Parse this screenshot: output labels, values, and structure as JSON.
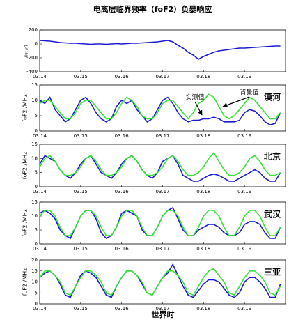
{
  "chart_data": [
    {
      "type": "line",
      "title": "电离层临界频率（foF2）负暴响应",
      "y_label": "Dst /nT",
      "x": [
        14,
        14.125,
        14.25,
        14.375,
        14.5,
        14.625,
        14.75,
        14.875,
        15,
        15.125,
        15.25,
        15.375,
        15.5,
        15.625,
        15.75,
        15.875,
        16,
        16.125,
        16.25,
        16.375,
        16.5,
        16.625,
        16.75,
        16.875,
        17,
        17.125,
        17.25,
        17.375,
        17.5,
        17.625,
        17.75,
        17.875,
        18,
        18.125,
        18.25,
        18.375,
        18.5,
        18.625,
        18.75,
        18.875,
        19,
        19.125,
        19.25,
        19.375,
        19.5,
        19.625,
        19.75,
        19.875
      ],
      "xlim": [
        14,
        20
      ],
      "xticks": [
        {
          "value": 14,
          "label": "03.14"
        },
        {
          "value": 15,
          "label": "03.15"
        },
        {
          "value": 16,
          "label": "03.16"
        },
        {
          "value": 17,
          "label": "03.17"
        },
        {
          "value": 18,
          "label": "03.18"
        },
        {
          "value": 19,
          "label": "03.19"
        }
      ],
      "ylim": [
        -400,
        200
      ],
      "yticks": [
        -400,
        -200,
        0,
        200
      ],
      "series": [
        {
          "color": "#1a1ad6",
          "values": [
            50,
            45,
            40,
            30,
            20,
            15,
            10,
            10,
            5,
            0,
            -5,
            0,
            0,
            -5,
            0,
            5,
            0,
            5,
            10,
            10,
            15,
            20,
            25,
            30,
            40,
            50,
            30,
            -20,
            -60,
            -120,
            -160,
            -220,
            -180,
            -150,
            -120,
            -100,
            -90,
            -80,
            -70,
            -60,
            -60,
            -55,
            -50,
            -45,
            -40,
            -35,
            -30,
            -30
          ]
        }
      ]
    },
    {
      "type": "line",
      "y_label": "foF2 /MHz",
      "station": "漠河",
      "annotations": [
        "实测值",
        "背景值"
      ],
      "x": [
        14,
        14.125,
        14.25,
        14.375,
        14.5,
        14.625,
        14.75,
        14.875,
        15,
        15.125,
        15.25,
        15.375,
        15.5,
        15.625,
        15.75,
        15.875,
        16,
        16.125,
        16.25,
        16.375,
        16.5,
        16.625,
        16.75,
        16.875,
        17,
        17.125,
        17.25,
        17.375,
        17.5,
        17.625,
        17.75,
        17.875,
        18,
        18.125,
        18.25,
        18.375,
        18.5,
        18.625,
        18.75,
        18.875,
        19,
        19.125,
        19.25,
        19.375,
        19.5,
        19.625,
        19.75,
        19.875
      ],
      "xlim": [
        14,
        20
      ],
      "xticks": [
        {
          "value": 14,
          "label": "03.14"
        },
        {
          "value": 15,
          "label": "03.15"
        },
        {
          "value": 16,
          "label": "03.16"
        },
        {
          "value": 17,
          "label": "03.17"
        },
        {
          "value": 18,
          "label": "03.18"
        },
        {
          "value": 19,
          "label": "03.19"
        }
      ],
      "ylim": [
        0,
        15
      ],
      "yticks": [
        0,
        5,
        10,
        15
      ],
      "series": [
        {
          "color": "#1a1ad6",
          "values": [
            10,
            9,
            11,
            7,
            5,
            3,
            4,
            7,
            10,
            11,
            9,
            6,
            4,
            3,
            4,
            8,
            10,
            9,
            10,
            7,
            5,
            3,
            4,
            7,
            10,
            11,
            9,
            6,
            4,
            3,
            3.5,
            3.5,
            4,
            4,
            4.5,
            4,
            3,
            3,
            3,
            3.5,
            6,
            7,
            6.5,
            5,
            3,
            2,
            2.5,
            6
          ]
        },
        {
          "color": "#33e633",
          "values": [
            9,
            10,
            10,
            8,
            6,
            4,
            4,
            6,
            9,
            10,
            10,
            8,
            6,
            4,
            4,
            6,
            9,
            11,
            10,
            8,
            5,
            4,
            4,
            6,
            9,
            10,
            10,
            8,
            6,
            4,
            6,
            9,
            10,
            12,
            11,
            8,
            5,
            4,
            5,
            7,
            9,
            11,
            10,
            8,
            6,
            4,
            4,
            6
          ]
        }
      ]
    },
    {
      "type": "line",
      "y_label": "foF2 /MHz",
      "station": "北京",
      "x": [
        14,
        14.125,
        14.25,
        14.375,
        14.5,
        14.625,
        14.75,
        14.875,
        15,
        15.125,
        15.25,
        15.375,
        15.5,
        15.625,
        15.75,
        15.875,
        16,
        16.125,
        16.25,
        16.375,
        16.5,
        16.625,
        16.75,
        16.875,
        17,
        17.125,
        17.25,
        17.375,
        17.5,
        17.625,
        17.75,
        17.875,
        18,
        18.125,
        18.25,
        18.375,
        18.5,
        18.625,
        18.75,
        18.875,
        19,
        19.125,
        19.25,
        19.375,
        19.5,
        19.625,
        19.75,
        19.875
      ],
      "xlim": [
        14,
        20
      ],
      "xticks": [
        {
          "value": 14,
          "label": "03.14"
        },
        {
          "value": 15,
          "label": "03.15"
        },
        {
          "value": 16,
          "label": "03.16"
        },
        {
          "value": 17,
          "label": "03.17"
        },
        {
          "value": 18,
          "label": "03.18"
        },
        {
          "value": 19,
          "label": "03.19"
        }
      ],
      "ylim": [
        0,
        15
      ],
      "yticks": [
        0,
        5,
        10,
        15
      ],
      "series": [
        {
          "color": "#1a1ad6",
          "values": [
            8,
            11,
            10,
            9,
            6,
            4,
            3,
            5,
            8,
            10,
            11,
            8,
            5,
            4,
            3,
            5,
            8,
            10,
            11,
            9,
            6,
            4,
            3,
            5,
            9,
            10,
            11,
            8,
            4,
            3,
            2,
            2,
            3,
            4,
            4.5,
            4,
            3,
            2,
            2,
            3,
            4,
            5,
            6,
            5,
            3,
            2,
            2,
            5
          ]
        },
        {
          "color": "#33e633",
          "values": [
            7,
            10,
            11,
            9,
            6,
            4,
            4,
            5,
            7,
            10,
            11,
            9,
            6,
            4,
            4,
            5,
            7,
            10,
            11,
            9,
            6,
            4,
            4,
            5,
            7,
            10,
            11,
            9,
            6,
            4,
            4,
            5,
            7,
            10,
            12,
            9,
            6,
            4,
            4,
            5,
            7,
            10,
            11,
            9,
            6,
            4,
            4,
            5
          ]
        }
      ]
    },
    {
      "type": "line",
      "y_label": "foF2 /MHz",
      "station": "武汉",
      "x": [
        14,
        14.125,
        14.25,
        14.375,
        14.5,
        14.625,
        14.75,
        14.875,
        15,
        15.125,
        15.25,
        15.375,
        15.5,
        15.625,
        15.75,
        15.875,
        16,
        16.125,
        16.25,
        16.375,
        16.5,
        16.625,
        16.75,
        16.875,
        17,
        17.125,
        17.25,
        17.375,
        17.5,
        17.625,
        17.75,
        17.875,
        18,
        18.125,
        18.25,
        18.375,
        18.5,
        18.625,
        18.75,
        18.875,
        19,
        19.125,
        19.25,
        19.375,
        19.5,
        19.625,
        19.75,
        19.875
      ],
      "xlim": [
        14,
        20
      ],
      "xticks": [
        {
          "value": 14,
          "label": "03.14"
        },
        {
          "value": 15,
          "label": "03.15"
        },
        {
          "value": 16,
          "label": "03.16"
        },
        {
          "value": 17,
          "label": "03.17"
        },
        {
          "value": 18,
          "label": "03.18"
        },
        {
          "value": 19,
          "label": "03.19"
        }
      ],
      "ylim": [
        0,
        15
      ],
      "yticks": [
        0,
        5,
        10,
        15
      ],
      "series": [
        {
          "color": "#1a1ad6",
          "values": [
            11,
            12,
            11,
            9,
            5,
            3,
            2,
            6,
            10,
            12,
            12,
            9,
            4,
            2,
            3,
            6,
            11,
            12,
            11,
            10,
            5,
            3,
            3,
            6,
            10,
            12,
            13,
            9,
            5,
            3,
            3,
            5,
            6,
            7,
            7,
            6,
            4,
            3,
            3,
            4,
            7,
            8,
            8,
            7,
            4,
            2,
            2,
            6
          ]
        },
        {
          "color": "#33e633",
          "values": [
            10,
            12,
            12,
            10,
            6,
            3,
            3,
            6,
            10,
            12,
            12,
            10,
            6,
            3,
            3,
            6,
            10,
            12,
            12,
            10,
            6,
            3,
            3,
            6,
            10,
            12,
            12,
            10,
            6,
            3,
            3,
            6,
            10,
            12,
            12,
            10,
            6,
            3,
            3,
            6,
            10,
            12,
            12,
            10,
            6,
            3,
            3,
            6
          ]
        }
      ]
    },
    {
      "type": "line",
      "y_label": "foF2 /MHz",
      "station": "三亚",
      "x_label": "世界时",
      "x": [
        14,
        14.125,
        14.25,
        14.375,
        14.5,
        14.625,
        14.75,
        14.875,
        15,
        15.125,
        15.25,
        15.375,
        15.5,
        15.625,
        15.75,
        15.875,
        16,
        16.125,
        16.25,
        16.375,
        16.5,
        16.625,
        16.75,
        16.875,
        17,
        17.125,
        17.25,
        17.375,
        17.5,
        17.625,
        17.75,
        17.875,
        18,
        18.125,
        18.25,
        18.375,
        18.5,
        18.625,
        18.75,
        18.875,
        19,
        19.125,
        19.25,
        19.375,
        19.5,
        19.625,
        19.75,
        19.875
      ],
      "xlim": [
        14,
        20
      ],
      "xticks": [
        {
          "value": 14,
          "label": "03.14"
        },
        {
          "value": 15,
          "label": "03.15"
        },
        {
          "value": 16,
          "label": "03.16"
        },
        {
          "value": 17,
          "label": "03.17"
        },
        {
          "value": 18,
          "label": "03.18"
        },
        {
          "value": 19,
          "label": "03.19"
        }
      ],
      "ylim": [
        0,
        20
      ],
      "yticks": [
        0,
        5,
        10,
        15,
        20
      ],
      "series": [
        {
          "color": "#1a1ad6",
          "values": [
            12,
            14,
            15,
            13,
            9,
            4,
            3,
            8,
            13,
            15,
            14,
            12,
            8,
            4,
            3,
            8,
            12,
            15,
            15,
            13,
            9,
            5,
            4,
            8,
            12,
            14,
            18,
            13,
            8,
            4,
            3,
            6,
            9,
            11,
            11,
            10,
            7,
            4,
            3,
            5,
            10,
            12,
            12,
            10,
            7,
            3,
            3,
            9
          ]
        },
        {
          "color": "#33e633",
          "values": [
            12,
            15,
            15,
            13,
            10,
            5,
            4,
            8,
            12,
            15,
            15,
            13,
            10,
            5,
            4,
            8,
            12,
            15,
            15,
            13,
            10,
            5,
            4,
            8,
            12,
            15,
            15,
            13,
            10,
            5,
            4,
            8,
            12,
            15,
            16,
            13,
            10,
            5,
            4,
            8,
            12,
            15,
            15,
            13,
            10,
            5,
            4,
            8
          ]
        }
      ]
    }
  ]
}
